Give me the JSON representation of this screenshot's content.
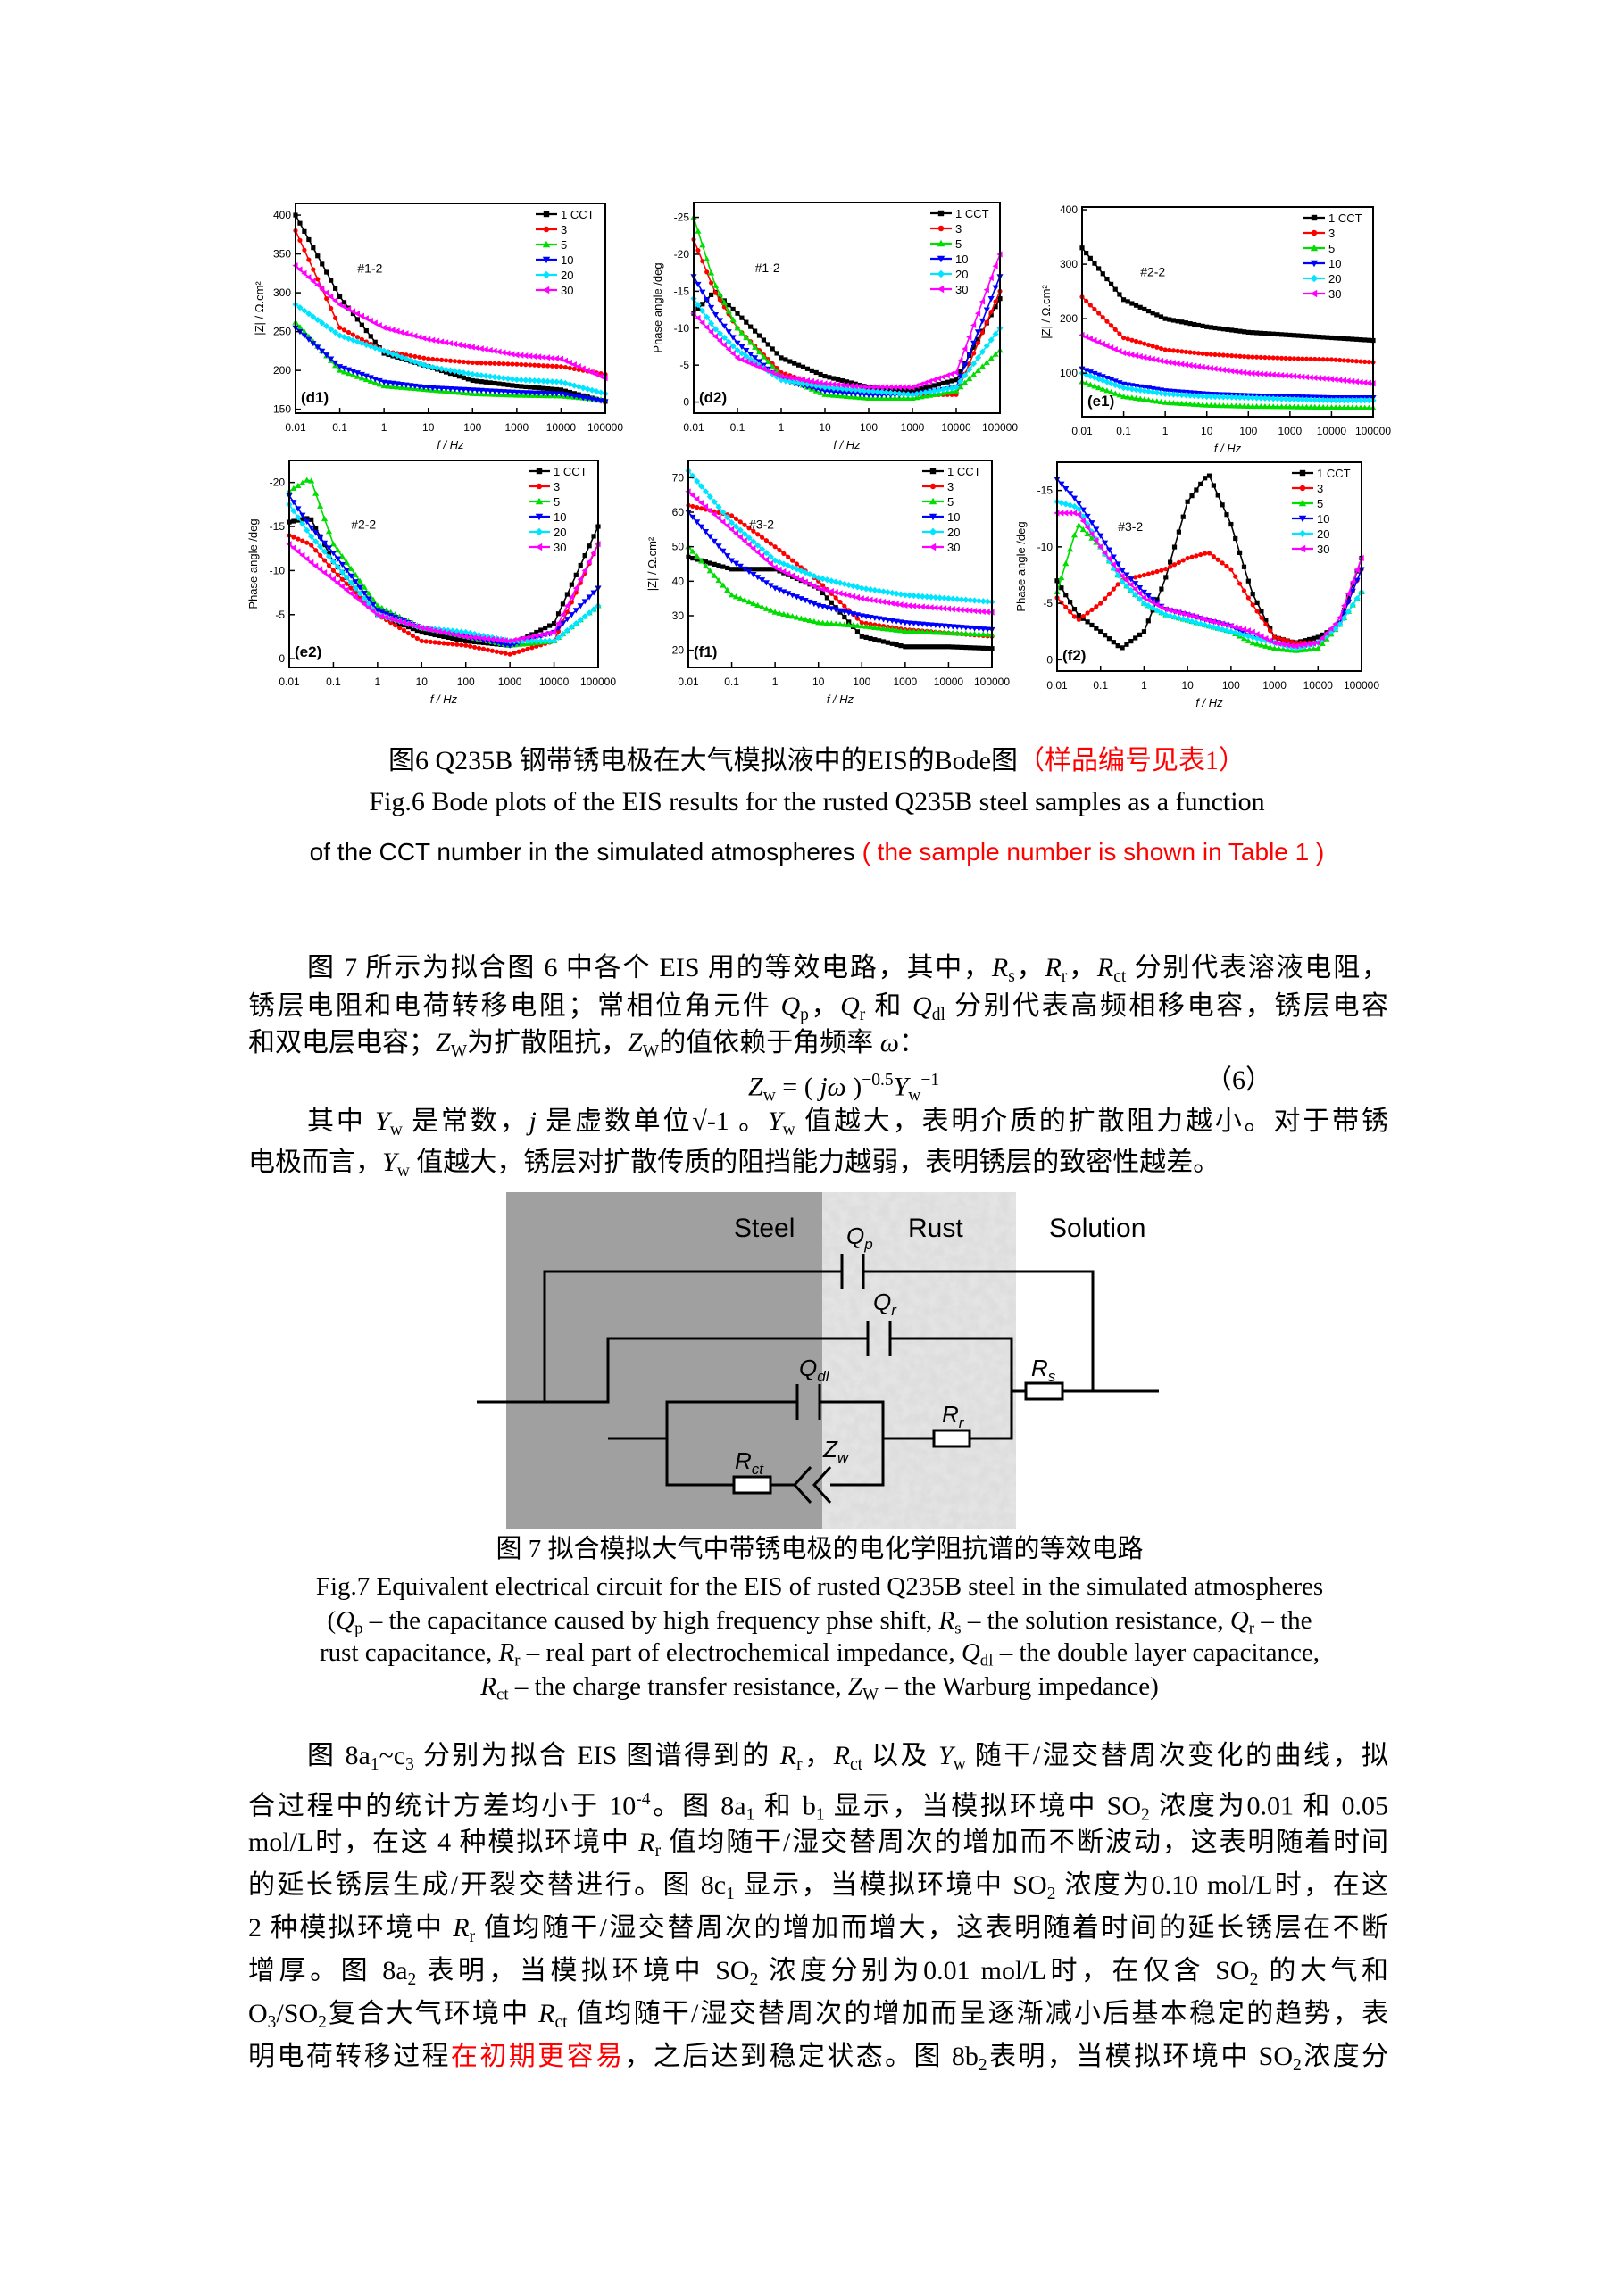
{
  "figure6": {
    "series_colors": [
      "#000000",
      "#ff0000",
      "#00dd00",
      "#0000ff",
      "#00e5ff",
      "#ff00ff"
    ],
    "marker_shapes": [
      "square",
      "circle",
      "triangle-up",
      "triangle-down",
      "diamond",
      "triangle-left"
    ],
    "caption": [
      [
        "图6 Q235B  钢带锈电极在大气模拟液中的EIS的Bode图",
        [
          "（样品编号见表1）",
          "red"
        ]
      ],
      [
        "Fig.6 Bode plots of the EIS results for the rusted Q235B steel samples as a function"
      ],
      [
        "of the CCT number in the simulated atmospheres ",
        [
          "( the sample number is shown in Table 1 )",
          "red"
        ]
      ]
    ]
  },
  "chart_data": [
    {
      "type": "line",
      "panel": "(d1)",
      "annotation": "#1-2",
      "xlabel": "f / Hz",
      "ylabel": "|Z| / Ω.cm²",
      "xscale": "log",
      "xlim": [
        0.01,
        100000
      ],
      "xticks": [
        "0.01",
        "0.1",
        "1",
        "10",
        "100",
        "1000",
        "10000",
        "100000"
      ],
      "ylim": [
        145,
        415
      ],
      "yticks": [
        150,
        200,
        250,
        300,
        350,
        400
      ],
      "legend": "top-right",
      "x": [
        0.01,
        0.1,
        1,
        10,
        100,
        1000,
        10000,
        100000
      ],
      "series": [
        {
          "name": "1 CCT",
          "values": [
            400,
            295,
            222,
            205,
            187,
            180,
            175,
            160
          ]
        },
        {
          "name": "3",
          "values": [
            380,
            255,
            225,
            215,
            210,
            208,
            205,
            195
          ]
        },
        {
          "name": "5",
          "values": [
            262,
            200,
            180,
            175,
            170,
            168,
            167,
            162
          ]
        },
        {
          "name": "10",
          "values": [
            255,
            205,
            185,
            178,
            175,
            172,
            170,
            160
          ]
        },
        {
          "name": "20",
          "values": [
            285,
            245,
            225,
            205,
            195,
            188,
            185,
            170
          ]
        },
        {
          "name": "30",
          "values": [
            335,
            285,
            255,
            240,
            230,
            220,
            215,
            190
          ]
        }
      ]
    },
    {
      "type": "line",
      "panel": "(d2)",
      "annotation": "#1-2",
      "xlabel": "f / Hz",
      "ylabel": "Phase angle /deg",
      "xscale": "log",
      "xlim": [
        0.01,
        100000
      ],
      "xticks": [
        "0.01",
        "0.1",
        "1",
        "10",
        "100",
        "1000",
        "10000",
        "100000"
      ],
      "ylim": [
        1.5,
        -27
      ],
      "yticks": [
        0,
        -5,
        -10,
        -15,
        -20,
        -25
      ],
      "legend": "top-right",
      "x": [
        0.01,
        0.03,
        0.1,
        1,
        10,
        100,
        1000,
        10000,
        100000
      ],
      "series": [
        {
          "name": "1 CCT",
          "values": [
            -12,
            -15,
            -12,
            -6,
            -3.5,
            -2,
            -1.5,
            -3,
            -14
          ]
        },
        {
          "name": "3",
          "values": [
            -22,
            -15,
            -10,
            -4,
            -2,
            -1.5,
            -1,
            -1,
            -15
          ]
        },
        {
          "name": "5",
          "values": [
            -25,
            -16,
            -10,
            -3.5,
            -1,
            -0.5,
            -0.5,
            -1.5,
            -7
          ]
        },
        {
          "name": "10",
          "values": [
            -17,
            -12,
            -8,
            -3,
            -1.5,
            -1,
            -1,
            -2,
            -17
          ]
        },
        {
          "name": "20",
          "values": [
            -14,
            -10,
            -7,
            -3,
            -2,
            -1.5,
            -1,
            -2,
            -10
          ]
        },
        {
          "name": "30",
          "values": [
            -12,
            -9,
            -6,
            -3.5,
            -2.5,
            -2,
            -2,
            -4,
            -20
          ]
        }
      ]
    },
    {
      "type": "line",
      "panel": "(e1)",
      "annotation": "#2-2",
      "xlabel": "f / Hz",
      "ylabel": "|Z| / Ω.cm²",
      "xscale": "log",
      "xlim": [
        0.01,
        100000
      ],
      "xticks": [
        "0.01",
        "0.1",
        "1",
        "10",
        "100",
        "1000",
        "10000",
        "100000"
      ],
      "ylim": [
        20,
        405
      ],
      "yticks": [
        100,
        200,
        300,
        400
      ],
      "legend": "top-right",
      "x": [
        0.01,
        0.1,
        1,
        10,
        100,
        1000,
        10000,
        100000
      ],
      "series": [
        {
          "name": "1 CCT",
          "values": [
            330,
            235,
            200,
            185,
            175,
            170,
            165,
            160
          ]
        },
        {
          "name": "3",
          "values": [
            240,
            165,
            143,
            135,
            130,
            127,
            125,
            120
          ]
        },
        {
          "name": "5",
          "values": [
            84,
            57,
            46,
            41,
            39,
            38,
            37,
            36
          ]
        },
        {
          "name": "10",
          "values": [
            108,
            80,
            68,
            62,
            59,
            57,
            55,
            55
          ]
        },
        {
          "name": "20",
          "values": [
            100,
            73,
            62,
            57,
            55,
            52,
            50,
            50
          ]
        },
        {
          "name": "30",
          "values": [
            170,
            137,
            121,
            110,
            100,
            95,
            89,
            81
          ]
        }
      ]
    },
    {
      "type": "line",
      "panel": "(e2)",
      "annotation": "#2-2",
      "xlabel": "f / Hz",
      "ylabel": "Phase angle /deg",
      "xscale": "log",
      "xlim": [
        0.01,
        100000
      ],
      "xticks": [
        "0.01",
        "0.1",
        "1",
        "10",
        "100",
        "1000",
        "10000",
        "100000"
      ],
      "ylim": [
        1,
        -22.5
      ],
      "yticks": [
        0,
        -5,
        -10,
        -15,
        -20
      ],
      "legend": "top-right",
      "x": [
        0.01,
        0.03,
        0.1,
        1,
        10,
        100,
        1000,
        10000,
        100000
      ],
      "series": [
        {
          "name": "1 CCT",
          "values": [
            -15.5,
            -16,
            -11,
            -5,
            -3,
            -2,
            -1.5,
            -4,
            -15
          ]
        },
        {
          "name": "3",
          "values": [
            -14,
            -13,
            -10,
            -5,
            -2,
            -1.5,
            -0.5,
            -2,
            -13
          ]
        },
        {
          "name": "5",
          "values": [
            -19,
            -20.5,
            -13,
            -6,
            -3.5,
            -2.5,
            -1.5,
            -2,
            -6
          ]
        },
        {
          "name": "10",
          "values": [
            -18.5,
            -15,
            -12,
            -5.5,
            -3.5,
            -2.5,
            -1.5,
            -3,
            -8
          ]
        },
        {
          "name": "20",
          "values": [
            -17.5,
            -14,
            -11,
            -5,
            -3.5,
            -3,
            -2,
            -2,
            -6
          ]
        },
        {
          "name": "30",
          "values": [
            -13,
            -11,
            -9,
            -5,
            -3.5,
            -2.5,
            -2,
            -3,
            -13
          ]
        }
      ]
    },
    {
      "type": "line",
      "panel": "(f1)",
      "annotation": "#3-2",
      "xlabel": "f / Hz",
      "ylabel": "|Z| / Ω.cm²",
      "xscale": "log",
      "xlim": [
        0.01,
        100000
      ],
      "xticks": [
        "0.01",
        "0.1",
        "1",
        "10",
        "100",
        "1000",
        "10000",
        "100000"
      ],
      "ylim": [
        15,
        75
      ],
      "yticks": [
        20,
        30,
        40,
        50,
        60,
        70
      ],
      "legend": "top-right",
      "x": [
        0.01,
        0.1,
        1,
        10,
        100,
        1000,
        10000,
        100000
      ],
      "series": [
        {
          "name": "1 CCT",
          "values": [
            47,
            43.5,
            43.5,
            38,
            24,
            21,
            21,
            20.5
          ]
        },
        {
          "name": "3",
          "values": [
            62,
            59,
            50,
            40,
            28,
            26,
            25,
            24
          ]
        },
        {
          "name": "5",
          "values": [
            50,
            36,
            31,
            28,
            27,
            25.5,
            25,
            24.5
          ]
        },
        {
          "name": "10",
          "values": [
            60,
            46,
            38,
            33,
            30,
            28,
            27,
            26
          ]
        },
        {
          "name": "20",
          "values": [
            72,
            57,
            46,
            41,
            38,
            36,
            35,
            34
          ]
        },
        {
          "name": "30",
          "values": [
            66,
            55,
            44,
            38,
            35,
            33,
            32,
            31
          ]
        }
      ]
    },
    {
      "type": "line",
      "panel": "(f2)",
      "annotation": "#3-2",
      "xlabel": "f / Hz",
      "ylabel": "Phase angle /deg",
      "xscale": "log",
      "xlim": [
        0.01,
        100000
      ],
      "xticks": [
        "0.01",
        "0.1",
        "1",
        "10",
        "100",
        "1000",
        "10000",
        "100000"
      ],
      "ylim": [
        1,
        -17.5
      ],
      "yticks": [
        0,
        -5,
        -10,
        -15
      ],
      "legend": "top-right",
      "x": [
        0.01,
        0.03,
        0.1,
        0.3,
        1,
        3,
        10,
        30,
        100,
        300,
        1000,
        3000,
        10000,
        30000,
        100000
      ],
      "series": [
        {
          "name": "1 CCT",
          "values": [
            -7,
            -4,
            -2.5,
            -1,
            -2.5,
            -7,
            -14,
            -16.5,
            -12,
            -6,
            -2,
            -1.5,
            -2,
            -3,
            -9
          ]
        },
        {
          "name": "3",
          "values": [
            -5.5,
            -3.5,
            -5,
            -7,
            -7.5,
            -8,
            -9,
            -9.5,
            -8,
            -5,
            -2,
            -1.5,
            -1.5,
            -3,
            -8
          ]
        },
        {
          "name": "5",
          "values": [
            -6,
            -12,
            -10,
            -7,
            -5,
            -4,
            -3.5,
            -3,
            -2.5,
            -1.5,
            -1,
            -0.8,
            -1,
            -3,
            -6
          ]
        },
        {
          "name": "10",
          "values": [
            -16,
            -14,
            -11,
            -8,
            -6,
            -4.5,
            -4,
            -3.5,
            -3,
            -2,
            -1.5,
            -1,
            -1.5,
            -3,
            -8
          ]
        },
        {
          "name": "20",
          "values": [
            -14,
            -13.5,
            -10,
            -7,
            -5,
            -4,
            -3.5,
            -3,
            -2.5,
            -2,
            -1.5,
            -1,
            -1.5,
            -3,
            -6
          ]
        },
        {
          "name": "30",
          "values": [
            -13,
            -13,
            -10,
            -7.5,
            -5.5,
            -4.5,
            -4,
            -3.5,
            -3,
            -2.5,
            -1.5,
            -1.2,
            -1.5,
            -3.5,
            -9
          ]
        }
      ]
    }
  ],
  "para1": {
    "lines": [
      [
        "图 7 所示为拟合图 6 中各个 EIS 用的等效电路，其中，",
        [
          "R",
          "i"
        ],
        [
          "s",
          "sub"
        ],
        "，",
        [
          "R",
          "i"
        ],
        [
          "r",
          "sub"
        ],
        "，",
        [
          "R",
          "i"
        ],
        [
          "ct",
          "sub"
        ],
        " 分别代表溶液电阻，"
      ],
      [
        "锈层电阻和电荷转移电阻；常相位角元件 ",
        [
          "Q",
          "i"
        ],
        [
          "p",
          "sub"
        ],
        "，",
        [
          "Q",
          "i"
        ],
        [
          "r",
          "sub"
        ],
        " 和 ",
        [
          "Q",
          "i"
        ],
        [
          "dl",
          "sub"
        ],
        " 分别代表高频相移电容，锈层电容"
      ],
      [
        "和双电层电容；",
        [
          "Z",
          "i"
        ],
        [
          "W",
          "sub"
        ],
        "为扩散阻抗，",
        [
          "Z",
          "i"
        ],
        [
          "W",
          "sub"
        ],
        "的值依赖于角频率 ",
        [
          "ω",
          "i"
        ],
        "："
      ],
      [
        "其中 ",
        [
          "Y",
          "i"
        ],
        [
          "w",
          "sub"
        ],
        " 是常数，",
        [
          "j",
          "i"
        ],
        " 是虚数单位√-1 。",
        [
          "Y",
          "i"
        ],
        [
          "w",
          "sub"
        ],
        " 值越大，表明介质的扩散阻力越小。对于带锈"
      ],
      [
        "电极而言，",
        [
          "Y",
          "i"
        ],
        [
          "w",
          "sub"
        ],
        " 值越大，锈层对扩散传质的阻挡能力越弱，表明锈层的致密性越差。"
      ]
    ],
    "formula": [
      [
        "Z",
        "i"
      ],
      [
        "w",
        "sub"
      ],
      " = ( ",
      [
        "jω",
        "i"
      ],
      " )",
      [
        "−0.5",
        "sup"
      ],
      [
        "Y",
        "i"
      ],
      [
        "w",
        "sub"
      ],
      [
        "−1",
        "sup"
      ]
    ],
    "formula_number": "（6）"
  },
  "figure7": {
    "labels": {
      "steel": "Steel",
      "rust": "Rust",
      "solution": "Solution",
      "qp": [
        "Q",
        "p"
      ],
      "qr": [
        "Q",
        "r"
      ],
      "qdl": [
        "Q",
        "dl"
      ],
      "rs": [
        "R",
        "s"
      ],
      "rr": [
        "R",
        "r"
      ],
      "rct": [
        "R",
        "ct"
      ],
      "zw": [
        "Z",
        "w"
      ]
    },
    "caption": [
      [
        "图 7 拟合模拟大气中带锈电极的电化学阻抗谱的等效电路"
      ],
      [
        "Fig.7 Equivalent electrical circuit for the EIS of rusted Q235B steel in the simulated atmospheres"
      ],
      [
        "(",
        [
          "Q",
          "i"
        ],
        [
          "p",
          "sub"
        ],
        " – the capacitance caused by high frequency phse shift, ",
        [
          "R",
          "i"
        ],
        [
          "s",
          "sub"
        ],
        " – the solution resistance, ",
        [
          "Q",
          "i"
        ],
        [
          "r",
          "sub"
        ],
        " – the"
      ],
      [
        "rust capacitance, ",
        [
          "R",
          "i"
        ],
        [
          "r",
          "sub"
        ],
        " – real part of electrochemical impedance, ",
        [
          "Q",
          "i"
        ],
        [
          "dl",
          "sub"
        ],
        " – the double layer capacitance,"
      ],
      [
        [
          "R",
          "i"
        ],
        [
          "ct",
          "sub"
        ],
        " – the charge transfer resistance, ",
        [
          "Z",
          "i"
        ],
        [
          "W",
          "sub"
        ],
        " – the Warburg impedance)"
      ]
    ]
  },
  "para2": {
    "lines": [
      [
        "图 8a",
        [
          "1",
          "sub"
        ],
        "~c",
        [
          "3",
          "sub"
        ],
        " 分别为拟合 EIS 图谱得到的 ",
        [
          "R",
          "i"
        ],
        [
          "r",
          "sub"
        ],
        "，",
        [
          "R",
          "i"
        ],
        [
          "ct",
          "sub"
        ],
        " 以及 ",
        [
          "Y",
          "i"
        ],
        [
          "w",
          "sub"
        ],
        " 随干/湿交替周次变化的曲线，拟"
      ],
      [
        "合过程中的统计方差均小于 10",
        [
          "-4",
          "sup"
        ],
        "。图 8a",
        [
          "1",
          "sub"
        ],
        " 和 b",
        [
          "1",
          "sub"
        ],
        " 显示，当模拟环境中 SO",
        [
          "2",
          "sub"
        ],
        " 浓度为0.01 和 0.05"
      ],
      [
        "mol/L时，在这 4 种模拟环境中 ",
        [
          "R",
          "i"
        ],
        [
          "r",
          "sub"
        ],
        " 值均随干/湿交替周次的增加而不断波动，这表明随着时间"
      ],
      [
        "的延长锈层生成/开裂交替进行。图 8c",
        [
          "1",
          "sub"
        ],
        " 显示，当模拟环境中 SO",
        [
          "2",
          "sub"
        ],
        " 浓度为0.10 mol/L时，在这"
      ],
      [
        "2 种模拟环境中 ",
        [
          "R",
          "i"
        ],
        [
          "r",
          "sub"
        ],
        " 值均随干/湿交替周次的增加而增大，这表明随着时间的延长锈层在不断"
      ],
      [
        "增厚。图 8a",
        [
          "2",
          "sub"
        ],
        " 表明，当模拟环境中 SO",
        [
          "2",
          "sub"
        ],
        " 浓度分别为0.01 mol/L时，在仅含 SO",
        [
          "2",
          "sub"
        ],
        " 的大气和"
      ],
      [
        "O",
        [
          "3",
          "sub"
        ],
        "/SO",
        [
          "2",
          "sub"
        ],
        "复合大气环境中 ",
        [
          "R",
          "i"
        ],
        [
          "ct",
          "sub"
        ],
        " 值均随干/湿交替周次的增加而呈逐渐减小后基本稳定的趋势，表"
      ],
      [
        "明电荷转移过程",
        [
          "在初期更容易",
          "red"
        ],
        "，之后达到稳定状态。图 8b",
        [
          "2",
          "sub"
        ],
        "表明，当模拟环境中 SO",
        [
          "2",
          "sub"
        ],
        "浓度分"
      ]
    ]
  }
}
